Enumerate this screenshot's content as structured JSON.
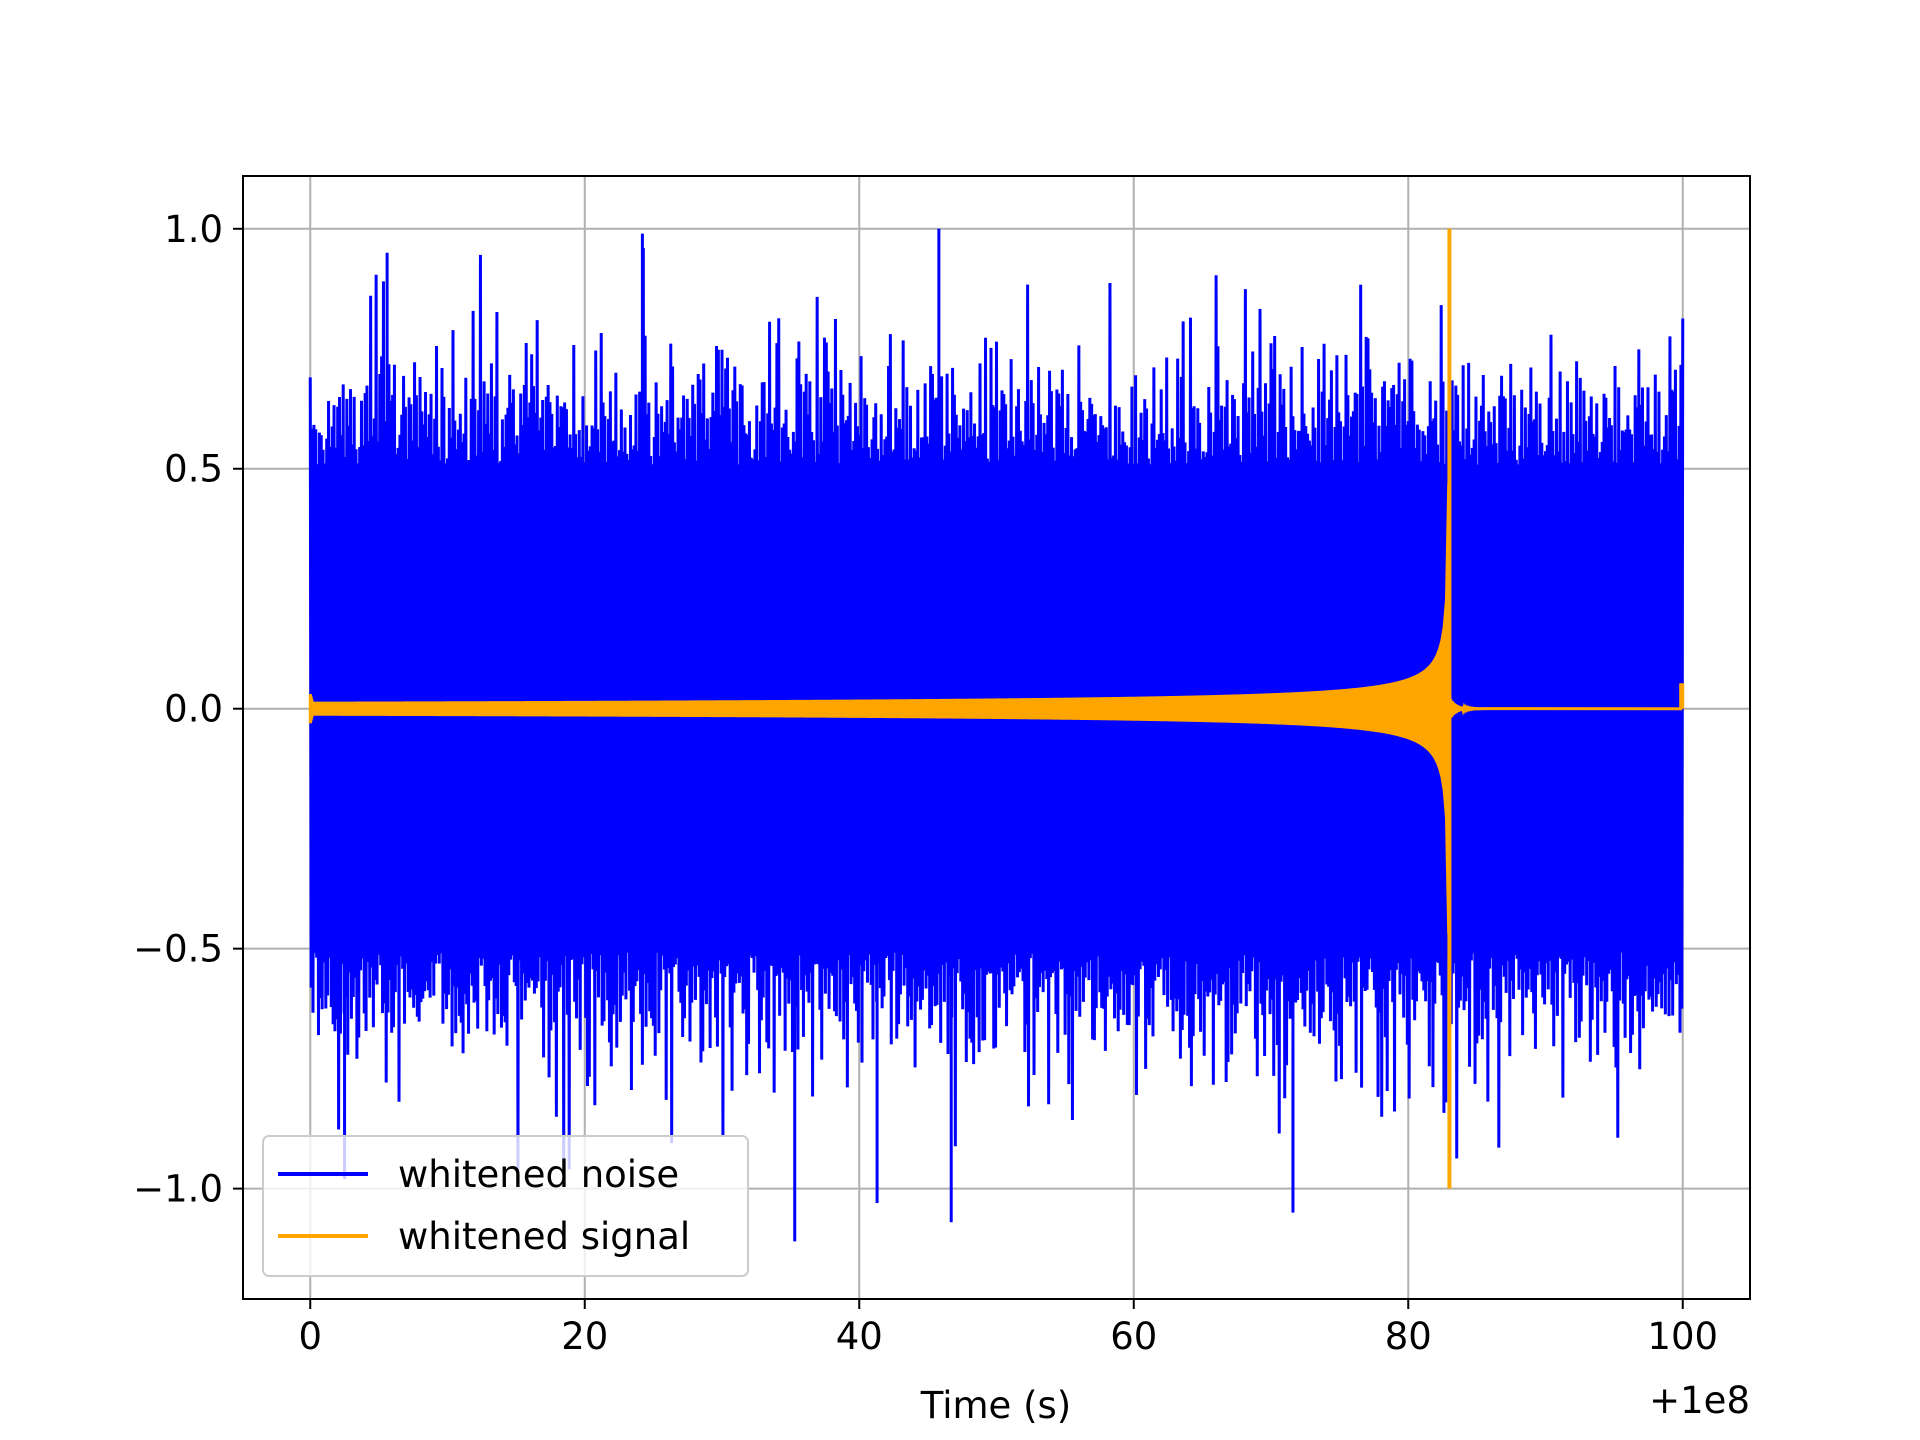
{
  "chart_data": {
    "type": "line",
    "xlabel": "Time (s)",
    "ylabel": "",
    "x_offset_label": "+1e8",
    "xlim": [
      -4.9,
      104.9
    ],
    "ylim": [
      -1.23,
      1.11
    ],
    "xticks": [
      0,
      20,
      40,
      60,
      80,
      100
    ],
    "xtick_labels": [
      "0",
      "20",
      "40",
      "60",
      "80",
      "100"
    ],
    "yticks": [
      1.0,
      0.5,
      0.0,
      -0.5,
      -1.0
    ],
    "ytick_labels": [
      "1.0",
      "0.5",
      "0.0",
      "−0.5",
      "−1.0"
    ],
    "grid": true,
    "legend_position": "lower-left",
    "series": [
      {
        "name": "whitened noise",
        "color": "#0000ff",
        "x_range": [
          0,
          100
        ],
        "typical_amplitude": 0.62,
        "max": 1.0,
        "min": -1.11,
        "note_points": [
          [
            45.8,
            1.0
          ],
          [
            24.2,
            0.99
          ],
          [
            35.3,
            -1.11
          ],
          [
            46.7,
            -1.07
          ],
          [
            41.3,
            -1.03
          ],
          [
            71.6,
            -1.05
          ],
          [
            2.5,
            -0.98
          ],
          [
            5.6,
            0.95
          ]
        ]
      },
      {
        "name": "whitened signal",
        "color": "#ffa500",
        "x_range": [
          0,
          100
        ],
        "merger_time": 83.0,
        "peak": 1.0,
        "trough": -1.0,
        "start_amplitude": 0.03,
        "post_merger_value": 0.0,
        "end_value": 0.05
      }
    ]
  }
}
